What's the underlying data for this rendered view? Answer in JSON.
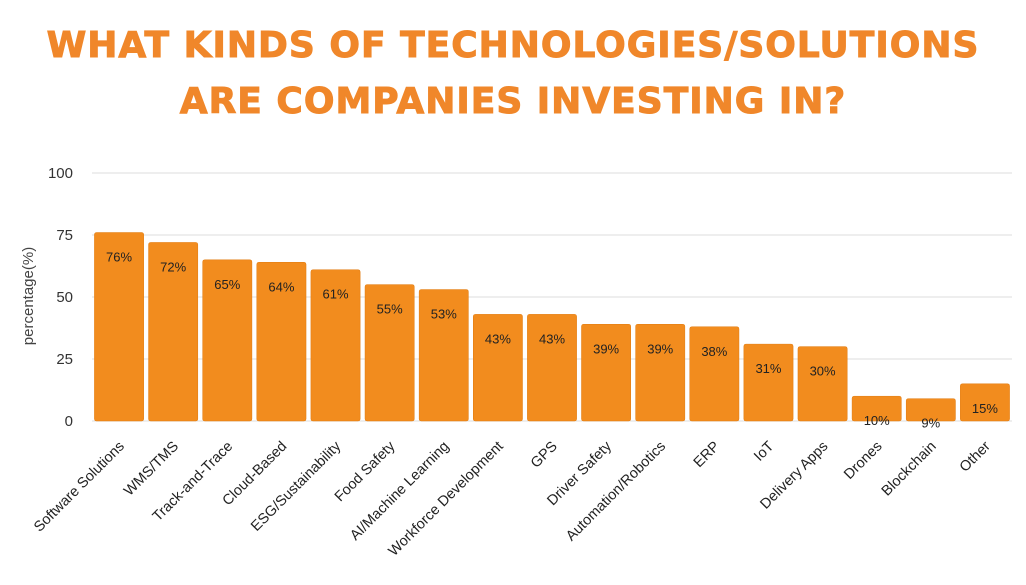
{
  "title_line1": "WHAT KINDS OF TECHNOLOGIES/SOLUTIONS",
  "title_line2": "ARE COMPANIES INVESTING IN?",
  "colors": {
    "title": "#F0872A",
    "bar": "#F28C1E",
    "bar_edge": "#E07A0E",
    "grid": "#DDDDDD"
  },
  "chart_data": {
    "type": "bar",
    "title": "WHAT KINDS OF TECHNOLOGIES/SOLUTIONS ARE COMPANIES INVESTING IN?",
    "xlabel": "",
    "ylabel": "percentage(%)",
    "ylim": [
      0,
      100
    ],
    "yticks": [
      0,
      25,
      50,
      75,
      100
    ],
    "grid": true,
    "categories": [
      "Software Solutions",
      "WMS/TMS",
      "Track-and-Trace",
      "Cloud-Based",
      "ESG/Sustainability",
      "Food Safety",
      "AI/Machine Learning",
      "Workforce Development",
      "GPS",
      "Driver Safety",
      "Automation/Robotics",
      "ERP",
      "IoT",
      "Delivery Apps",
      "Drones",
      "Blockchain",
      "Other"
    ],
    "values": [
      76,
      72,
      65,
      64,
      61,
      55,
      53,
      43,
      43,
      39,
      39,
      38,
      31,
      30,
      10,
      9,
      15
    ],
    "data_labels": [
      "76%",
      "72%",
      "65%",
      "64%",
      "61%",
      "55%",
      "53%",
      "43%",
      "43%",
      "39%",
      "39%",
      "38%",
      "31%",
      "30%",
      "10%",
      "9%",
      "15%"
    ]
  }
}
